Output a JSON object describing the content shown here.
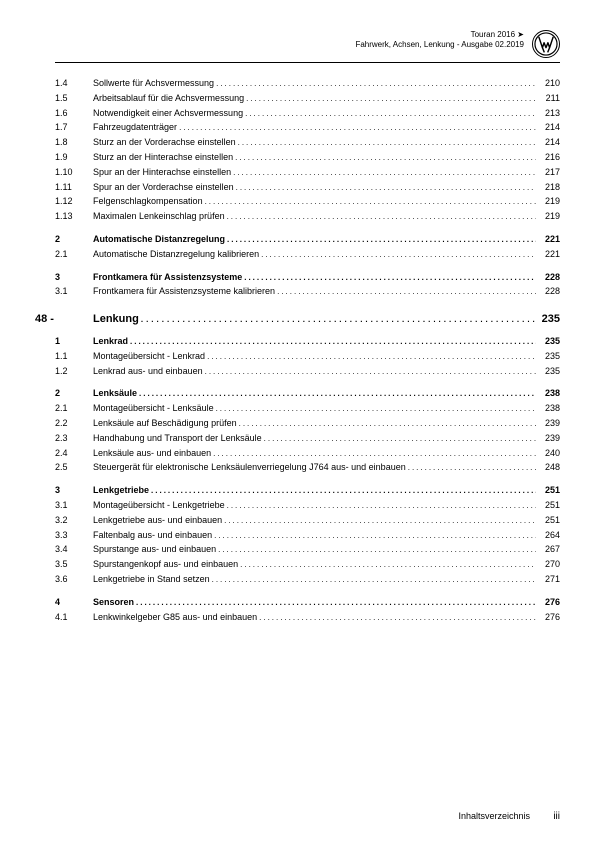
{
  "header": {
    "model": "Touran 2016",
    "arrow": "➤",
    "subtitle": "Fahrwerk, Achsen, Lenkung - Ausgabe 02.2019"
  },
  "chapter": {
    "num": "48 -",
    "title": "Lenkung",
    "page": "235"
  },
  "rows1": [
    {
      "n": "1.4",
      "t": "Sollwerte für Achsvermessung",
      "p": "210",
      "b": false
    },
    {
      "n": "1.5",
      "t": "Arbeitsablauf für die Achsvermessung",
      "p": "211",
      "b": false
    },
    {
      "n": "1.6",
      "t": "Notwendigkeit einer Achsvermessung",
      "p": "213",
      "b": false
    },
    {
      "n": "1.7",
      "t": "Fahrzeugdatenträger",
      "p": "214",
      "b": false
    },
    {
      "n": "1.8",
      "t": "Sturz an der Vorderachse einstellen",
      "p": "214",
      "b": false
    },
    {
      "n": "1.9",
      "t": "Sturz an der Hinterachse einstellen",
      "p": "216",
      "b": false
    },
    {
      "n": "1.10",
      "t": "Spur an der Hinterachse einstellen",
      "p": "217",
      "b": false
    },
    {
      "n": "1.11",
      "t": "Spur an der Vorderachse einstellen",
      "p": "218",
      "b": false
    },
    {
      "n": "1.12",
      "t": "Felgenschlagkompensation",
      "p": "219",
      "b": false
    },
    {
      "n": "1.13",
      "t": "Maximalen Lenkeinschlag prüfen",
      "p": "219",
      "b": false
    },
    {
      "n": "2",
      "t": "Automatische Distanzregelung",
      "p": "221",
      "b": true
    },
    {
      "n": "2.1",
      "t": "Automatische Distanzregelung kalibrieren",
      "p": "221",
      "b": false
    },
    {
      "n": "3",
      "t": "Frontkamera für Assistenzsysteme",
      "p": "228",
      "b": true
    },
    {
      "n": "3.1",
      "t": "Frontkamera für Assistenzsysteme kalibrieren",
      "p": "228",
      "b": false
    }
  ],
  "rows2": [
    {
      "n": "1",
      "t": "Lenkrad",
      "p": "235",
      "b": true
    },
    {
      "n": "1.1",
      "t": "Montageübersicht - Lenkrad",
      "p": "235",
      "b": false
    },
    {
      "n": "1.2",
      "t": "Lenkrad aus- und einbauen",
      "p": "235",
      "b": false
    },
    {
      "n": "2",
      "t": "Lenksäule",
      "p": "238",
      "b": true
    },
    {
      "n": "2.1",
      "t": "Montageübersicht - Lenksäule",
      "p": "238",
      "b": false
    },
    {
      "n": "2.2",
      "t": "Lenksäule auf Beschädigung prüfen",
      "p": "239",
      "b": false
    },
    {
      "n": "2.3",
      "t": "Handhabung und Transport der Lenksäule",
      "p": "239",
      "b": false
    },
    {
      "n": "2.4",
      "t": "Lenksäule aus- und einbauen",
      "p": "240",
      "b": false
    },
    {
      "n": "2.5",
      "t": "Steuergerät für elektronische Lenksäulenverriegelung J764 aus- und einbauen",
      "p": "248",
      "b": false
    },
    {
      "n": "3",
      "t": "Lenkgetriebe",
      "p": "251",
      "b": true
    },
    {
      "n": "3.1",
      "t": "Montageübersicht - Lenkgetriebe",
      "p": "251",
      "b": false
    },
    {
      "n": "3.2",
      "t": "Lenkgetriebe aus- und einbauen",
      "p": "251",
      "b": false
    },
    {
      "n": "3.3",
      "t": "Faltenbalg aus- und einbauen",
      "p": "264",
      "b": false
    },
    {
      "n": "3.4",
      "t": "Spurstange aus- und einbauen",
      "p": "267",
      "b": false
    },
    {
      "n": "3.5",
      "t": "Spurstangenkopf aus- und einbauen",
      "p": "270",
      "b": false
    },
    {
      "n": "3.6",
      "t": "Lenkgetriebe in Stand setzen",
      "p": "271",
      "b": false
    },
    {
      "n": "4",
      "t": "Sensoren",
      "p": "276",
      "b": true
    },
    {
      "n": "4.1",
      "t": "Lenkwinkelgeber G85 aus- und einbauen",
      "p": "276",
      "b": false
    }
  ],
  "footer": {
    "label": "Inhaltsverzeichnis",
    "page": "iii"
  },
  "dots": "...................................................................................................................."
}
